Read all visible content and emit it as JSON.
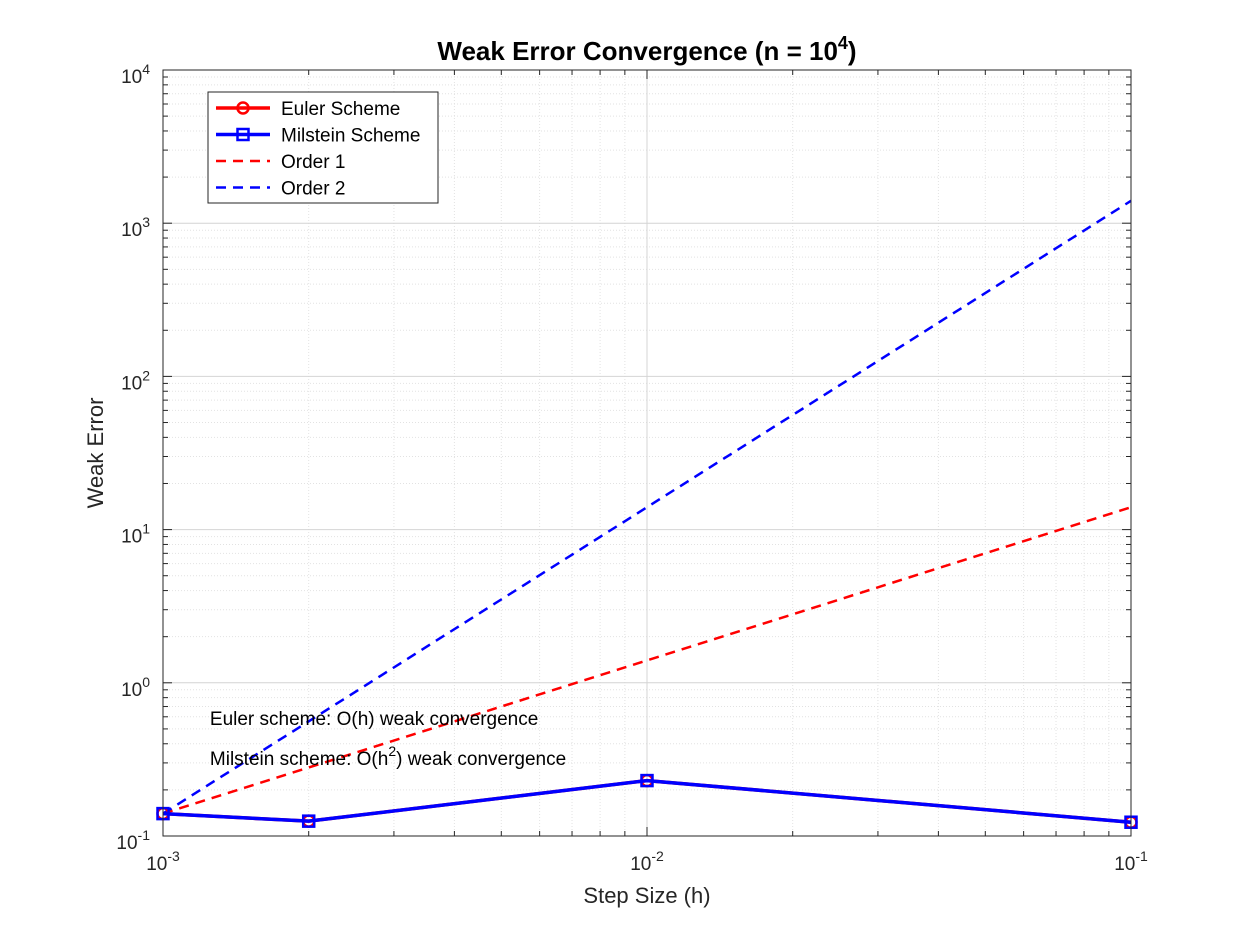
{
  "chart_data": {
    "type": "line",
    "title": "Weak Error Convergence (n = 10",
    "title_sup": "4",
    "title_end": ")",
    "xlabel": "Step Size (h)",
    "ylabel": "Weak Error",
    "xscale": "log",
    "yscale": "log",
    "xlim": [
      0.001,
      0.1
    ],
    "ylim": [
      0.1,
      10000
    ],
    "grid": true,
    "minor_grid": true,
    "legend_position": "top-left",
    "x_ticks": [
      {
        "value": 0.001,
        "base": "10",
        "exp": "-3"
      },
      {
        "value": 0.01,
        "base": "10",
        "exp": "-2"
      },
      {
        "value": 0.1,
        "base": "10",
        "exp": "-1"
      }
    ],
    "y_ticks": [
      {
        "value": 0.1,
        "base": "10",
        "exp": "-1"
      },
      {
        "value": 1,
        "base": "10",
        "exp": "0"
      },
      {
        "value": 10,
        "base": "10",
        "exp": "1"
      },
      {
        "value": 100,
        "base": "10",
        "exp": "2"
      },
      {
        "value": 1000,
        "base": "10",
        "exp": "3"
      },
      {
        "value": 10000,
        "base": "10",
        "exp": "4"
      }
    ],
    "series": [
      {
        "name": "Euler Scheme",
        "style": "solid",
        "marker": "circle",
        "color": "#ff0000",
        "line_width": 3.5,
        "x": [
          0.001,
          0.002,
          0.01,
          0.1
        ],
        "y": [
          0.14,
          0.125,
          0.23,
          0.123
        ]
      },
      {
        "name": "Milstein Scheme",
        "style": "solid",
        "marker": "square",
        "color": "#0000ff",
        "line_width": 3.5,
        "x": [
          0.001,
          0.002,
          0.01,
          0.1
        ],
        "y": [
          0.14,
          0.125,
          0.23,
          0.123
        ]
      },
      {
        "name": "Order 1",
        "style": "dashed",
        "marker": "none",
        "color": "#ff0000",
        "line_width": 2.5,
        "x": [
          0.001,
          0.1
        ],
        "y": [
          0.14,
          14
        ]
      },
      {
        "name": "Order 2",
        "style": "dashed",
        "marker": "none",
        "color": "#0000ff",
        "line_width": 2.5,
        "x": [
          0.001,
          0.1
        ],
        "y": [
          0.14,
          1400
        ]
      }
    ],
    "annotations": [
      {
        "text": "Euler scheme: O(h) weak convergence",
        "x": 0.00125,
        "y": 0.53
      },
      {
        "pre": "Milstein scheme: O(h",
        "sup": "2",
        "post": ") weak convergence",
        "x": 0.00125,
        "y": 0.29
      }
    ]
  }
}
